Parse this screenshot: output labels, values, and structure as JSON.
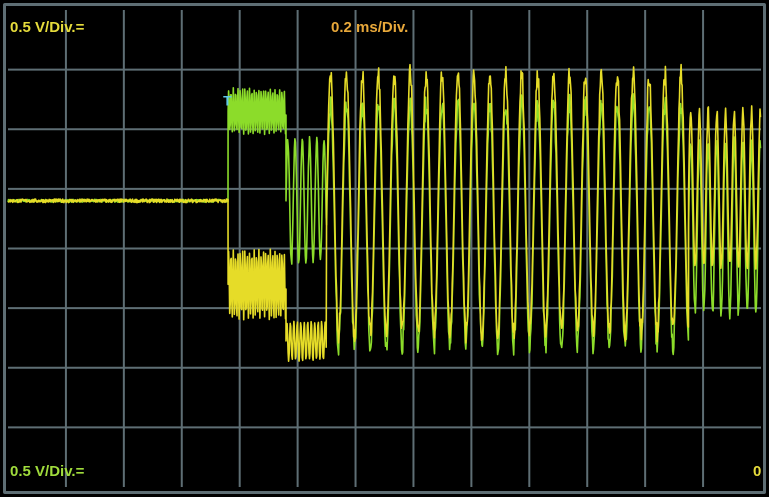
{
  "screen": {
    "ch1_scale": "0.5 V/Div.=",
    "timebase": "0.2 ms/Div.",
    "ch2_scale": "0.5 V/Div.=",
    "corner_value": "0",
    "trigger_marker": "T"
  },
  "colors": {
    "background": "#000000",
    "grid": "#5e6e74",
    "trace_yellow": "#e6dc28",
    "trace_green": "#8cdc2a",
    "trigger": "#60c8e8",
    "label_yellow": "#e6dc3c",
    "label_orange": "#e8a83a",
    "label_green": "#a0dc3c"
  },
  "chart_data": {
    "type": "line",
    "title": "",
    "xlabel": "",
    "ylabel": "",
    "x_divisions": 13,
    "y_divisions": 8,
    "x_unit": "ms",
    "x_per_div": 0.2,
    "y_unit": "V",
    "y_per_div": 0.5,
    "xlim": [
      0,
      2.6
    ],
    "ylim": [
      -2.4,
      1.6
    ],
    "grid": true,
    "trigger_time": 0.76,
    "series": [
      {
        "segments": [
          {
            "t0": 0.0,
            "t1": 0.76,
            "kind": "flat",
            "v": 0.0,
            "noise": 0.015
          },
          {
            "t0": 0.76,
            "t1": 0.96,
            "kind": "osc",
            "hi": 1.0,
            "lo": 0.0,
            "low": -1.0,
            "high": -0.4,
            "period": 0.008
          },
          {
            "t0": 0.96,
            "t1": 1.1,
            "kind": "osc",
            "low": -1.35,
            "high": -1.0,
            "period": 0.012
          },
          {
            "t0": 1.1,
            "t1": 2.35,
            "kind": "osc",
            "low": -1.2,
            "high": 1.15,
            "period": 0.055
          },
          {
            "t0": 2.35,
            "t1": 2.6,
            "kind": "osc",
            "low": -0.6,
            "high": 0.8,
            "period": 0.03
          }
        ]
      },
      {
        "segments": [
          {
            "t0": 0.0,
            "t1": 0.76,
            "kind": "flat",
            "v": 0.0,
            "noise": 0.012
          },
          {
            "t0": 0.76,
            "t1": 0.96,
            "kind": "osc",
            "low": 0.55,
            "high": 0.95,
            "period": 0.008
          },
          {
            "t0": 0.96,
            "t1": 1.1,
            "kind": "osc",
            "low": -0.55,
            "high": 0.55,
            "period": 0.025
          },
          {
            "t0": 1.1,
            "t1": 2.35,
            "kind": "osc",
            "low": -1.3,
            "high": 0.9,
            "period": 0.055
          },
          {
            "t0": 2.35,
            "t1": 2.6,
            "kind": "osc",
            "low": -1.0,
            "high": 0.55,
            "period": 0.03
          }
        ]
      }
    ]
  }
}
